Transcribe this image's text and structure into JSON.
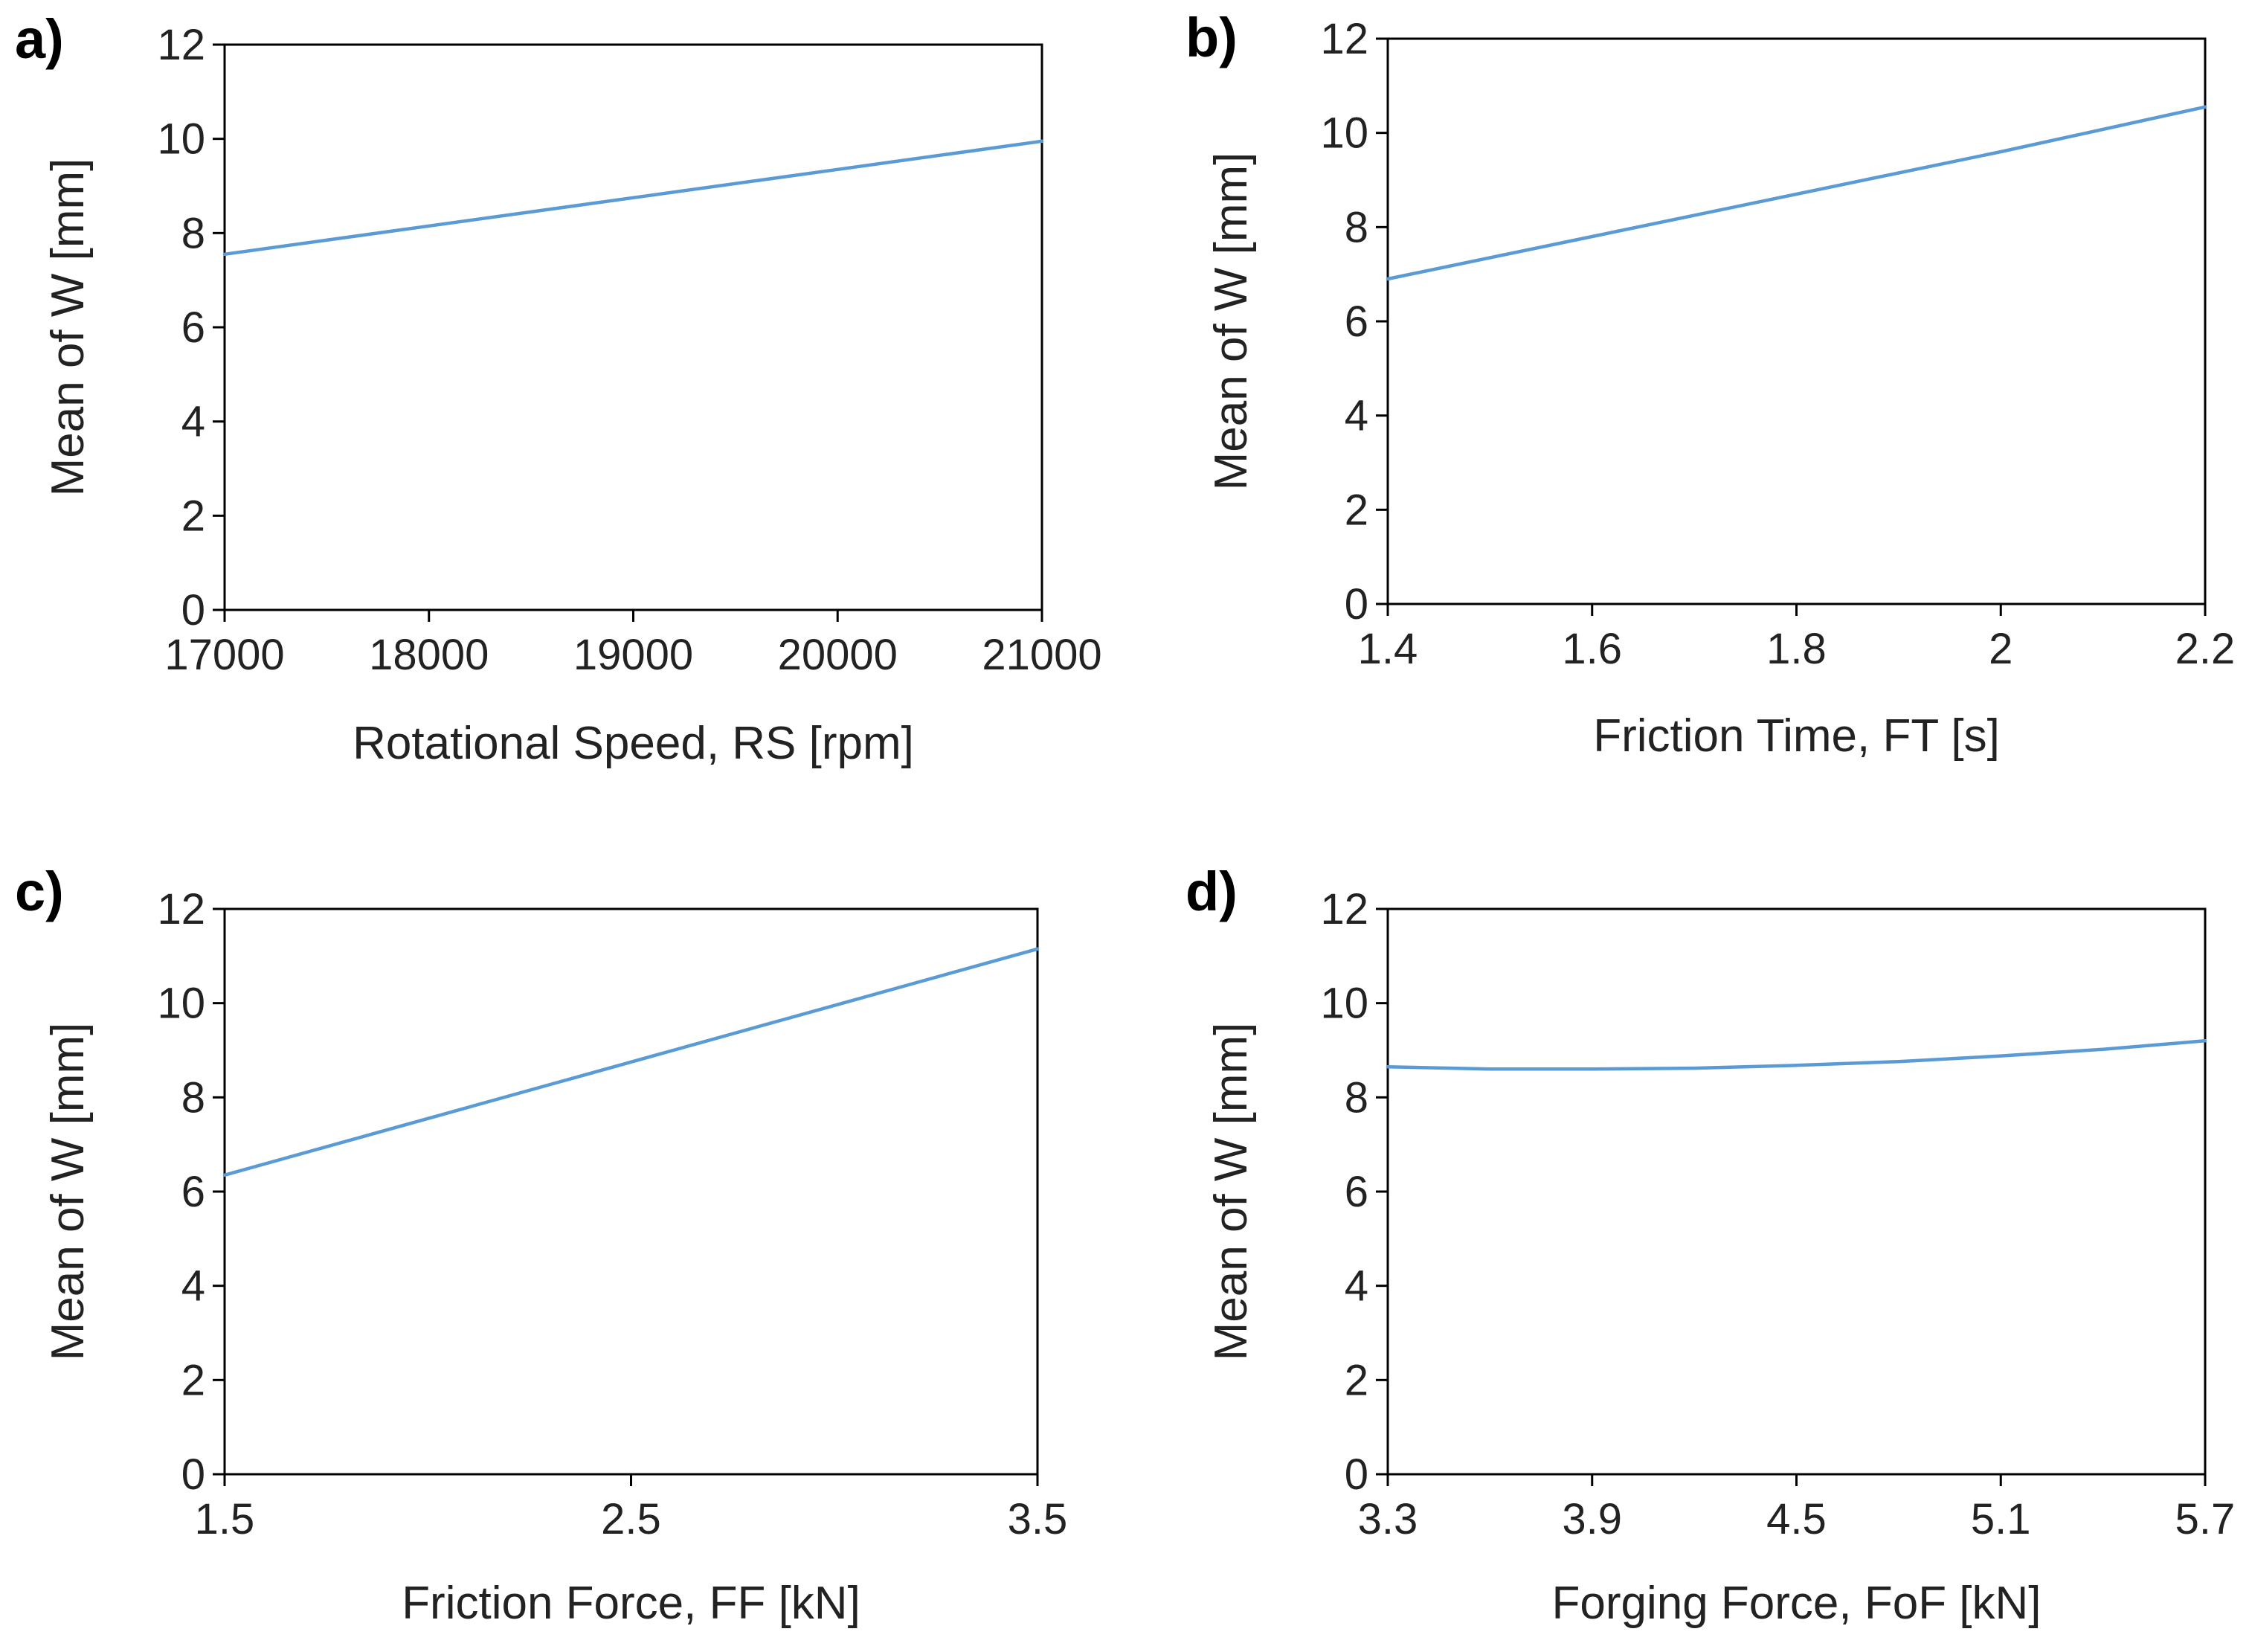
{
  "line_color": "#5b9bd5",
  "axis_color": "#000000",
  "chart_data": [
    {
      "panel": "a)",
      "type": "line",
      "xlabel": "Rotational Speed, RS [rpm]",
      "ylabel": "Mean of W [mm]",
      "xlim": [
        17000,
        21000
      ],
      "ylim": [
        0,
        12
      ],
      "xticks": [
        17000,
        18000,
        19000,
        20000,
        21000
      ],
      "xtick_labels": [
        "17000",
        "18000",
        "19000",
        "20000",
        "21000"
      ],
      "yticks": [
        0,
        2,
        4,
        6,
        8,
        10,
        12
      ],
      "ytick_labels": [
        "0",
        "2",
        "4",
        "6",
        "8",
        "10",
        "12"
      ],
      "series": [
        {
          "name": "Mean of W",
          "x": [
            17000,
            18000,
            19000,
            20000,
            21000
          ],
          "y": [
            7.55,
            8.15,
            8.75,
            9.35,
            9.95
          ]
        }
      ]
    },
    {
      "panel": "b)",
      "type": "line",
      "xlabel": "Friction Time, FT [s]",
      "ylabel": "Mean of W [mm]",
      "xlim": [
        1.4,
        2.2
      ],
      "ylim": [
        0,
        12
      ],
      "xticks": [
        1.4,
        1.6,
        1.8,
        2.0,
        2.2
      ],
      "xtick_labels": [
        "1.4",
        "1.6",
        "1.8",
        "2",
        "2.2"
      ],
      "yticks": [
        0,
        2,
        4,
        6,
        8,
        10,
        12
      ],
      "ytick_labels": [
        "0",
        "2",
        "4",
        "6",
        "8",
        "10",
        "12"
      ],
      "series": [
        {
          "name": "Mean of W",
          "x": [
            1.4,
            1.6,
            1.8,
            2.0,
            2.2
          ],
          "y": [
            6.9,
            7.8,
            8.7,
            9.6,
            10.55
          ]
        }
      ]
    },
    {
      "panel": "c)",
      "type": "line",
      "xlabel": "Friction Force, FF [kN]",
      "ylabel": "Mean of W [mm]",
      "xlim": [
        1.5,
        3.5
      ],
      "ylim": [
        0,
        12
      ],
      "xticks": [
        1.5,
        2.5,
        3.5
      ],
      "xtick_labels": [
        "1.5",
        "2.5",
        "3.5"
      ],
      "yticks": [
        0,
        2,
        4,
        6,
        8,
        10,
        12
      ],
      "ytick_labels": [
        "0",
        "2",
        "4",
        "6",
        "8",
        "10",
        "12"
      ],
      "series": [
        {
          "name": "Mean of W",
          "x": [
            1.5,
            2.0,
            2.5,
            3.0,
            3.5
          ],
          "y": [
            6.35,
            7.55,
            8.75,
            9.95,
            11.15
          ]
        }
      ]
    },
    {
      "panel": "d)",
      "type": "line",
      "xlabel": "Forging Force, FoF [kN]",
      "ylabel": "Mean of W [mm]",
      "xlim": [
        3.3,
        5.7
      ],
      "ylim": [
        0,
        12
      ],
      "xticks": [
        3.3,
        3.9,
        4.5,
        5.1,
        5.7
      ],
      "xtick_labels": [
        "3.3",
        "3.9",
        "4.5",
        "5.1",
        "5.7"
      ],
      "yticks": [
        0,
        2,
        4,
        6,
        8,
        10,
        12
      ],
      "ytick_labels": [
        "0",
        "2",
        "4",
        "6",
        "8",
        "10",
        "12"
      ],
      "series": [
        {
          "name": "Mean of W",
          "x": [
            3.3,
            3.6,
            3.9,
            4.2,
            4.5,
            4.8,
            5.1,
            5.4,
            5.7
          ],
          "y": [
            8.65,
            8.6,
            8.6,
            8.62,
            8.68,
            8.76,
            8.88,
            9.02,
            9.2
          ]
        }
      ]
    }
  ]
}
